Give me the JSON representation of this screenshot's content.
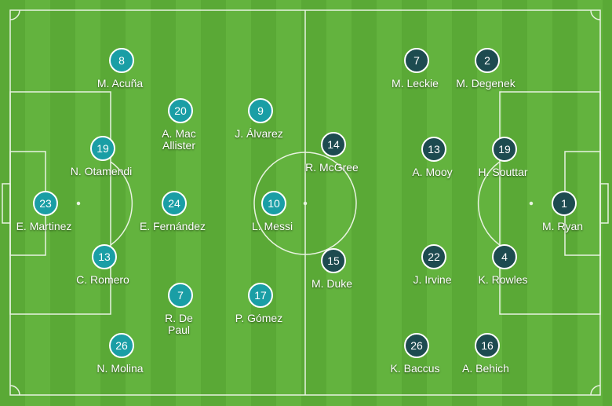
{
  "colors": {
    "home": "#1a9ea5",
    "away": "#1d4b50",
    "pitch": "#5aa936",
    "lines": "#e8f3e0"
  },
  "home_team": {
    "players": [
      {
        "number": "8",
        "name": "M. Acuña"
      },
      {
        "number": "20",
        "name": "A. Mac Allister"
      },
      {
        "number": "9",
        "name": "J. Álvarez"
      },
      {
        "number": "19",
        "name": "N. Otamendi"
      },
      {
        "number": "23",
        "name": "E. Martinez"
      },
      {
        "number": "24",
        "name": "E. Fernández"
      },
      {
        "number": "10",
        "name": "L. Messi"
      },
      {
        "number": "13",
        "name": "C. Romero"
      },
      {
        "number": "7",
        "name": "R. De Paul"
      },
      {
        "number": "17",
        "name": "P. Gómez"
      },
      {
        "number": "26",
        "name": "N. Molina"
      }
    ]
  },
  "away_team": {
    "players": [
      {
        "number": "7",
        "name": "M. Leckie"
      },
      {
        "number": "2",
        "name": "M. Degenek"
      },
      {
        "number": "14",
        "name": "R. McGree"
      },
      {
        "number": "13",
        "name": "A. Mooy"
      },
      {
        "number": "19",
        "name": "H. Souttar"
      },
      {
        "number": "1",
        "name": "M. Ryan"
      },
      {
        "number": "15",
        "name": "M. Duke"
      },
      {
        "number": "22",
        "name": "J. Irvine"
      },
      {
        "number": "4",
        "name": "K. Rowles"
      },
      {
        "number": "26",
        "name": "K. Baccus"
      },
      {
        "number": "16",
        "name": "A. Behich"
      }
    ]
  }
}
